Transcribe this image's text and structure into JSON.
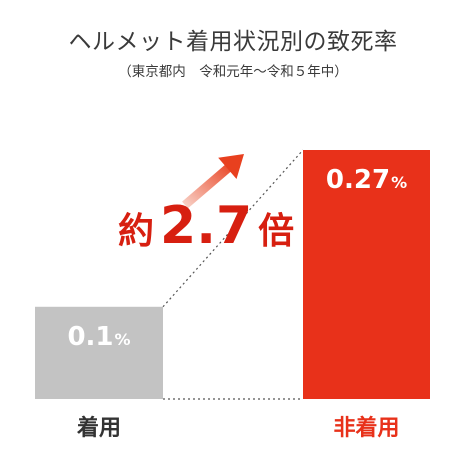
{
  "chart_data": {
    "type": "bar",
    "title": "ヘルメット着用状況別の致死率",
    "subtitle": "（東京都内　令和元年〜令和５年中）",
    "categories": [
      "着用",
      "非着用"
    ],
    "values": [
      0.1,
      0.27
    ],
    "value_labels": [
      "0.1",
      "0.27"
    ],
    "unit": "%",
    "ratio": {
      "prefix": "約",
      "value": "2.7",
      "suffix": "倍"
    },
    "colors": {
      "worn": "#c3c3c3",
      "not_worn": "#e8311a",
      "ratio_text": "#d71f10",
      "worn_label": "#333333",
      "not_worn_label": "#e8311a",
      "arrow_start": "#f8cfc4",
      "arrow_end": "#e8401f"
    }
  }
}
